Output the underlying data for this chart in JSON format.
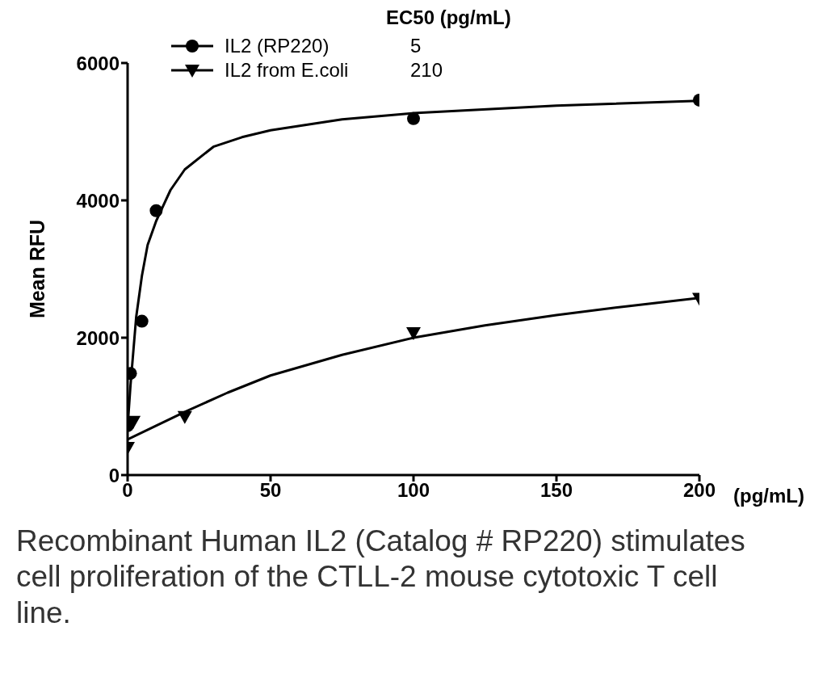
{
  "chart_data": {
    "type": "scatter",
    "ylabel": "Mean RFU",
    "xlabel": "(pg/mL)",
    "legend_title": "EC50 (pg/mL)",
    "legend": "top left",
    "xlim": [
      0,
      200
    ],
    "xticks": [
      0,
      50,
      100,
      150,
      200
    ],
    "ylim": [
      0,
      6000
    ],
    "yticks": [
      0,
      2000,
      4000,
      6000
    ],
    "series": [
      {
        "name": "IL2 (RP220)",
        "marker": "circle",
        "color": "#000000",
        "x": [
          0,
          1,
          5,
          10,
          100,
          200
        ],
        "values": [
          720,
          1480,
          2240,
          3850,
          5190,
          5460
        ]
      },
      {
        "name": "IL2 from E.coli",
        "marker": "triangle",
        "color": "#000000",
        "x": [
          0,
          2,
          20,
          100,
          200
        ],
        "values": [
          400,
          780,
          850,
          2070,
          2570
        ]
      },
      {
        "type": "line",
        "marker": "none",
        "color": "#000000",
        "x": [
          0,
          1,
          2,
          3,
          5,
          7,
          10,
          15,
          20,
          30,
          40,
          50,
          75,
          100,
          150,
          200
        ],
        "values": [
          700,
          1300,
          1800,
          2300,
          2900,
          3350,
          3700,
          4150,
          4450,
          4780,
          4920,
          5020,
          5180,
          5270,
          5380,
          5450
        ]
      },
      {
        "type": "line",
        "marker": "none",
        "color": "#000000",
        "x": [
          0,
          10,
          20,
          35,
          50,
          75,
          100,
          125,
          150,
          175,
          200
        ],
        "values": [
          520,
          720,
          920,
          1200,
          1450,
          1750,
          2000,
          2180,
          2330,
          2460,
          2580
        ]
      }
    ],
    "annotations": [
      "5",
      "210",
      "Recombinant Human IL2 (Catalog # RP220) stimulates cell proliferation of the CTLL-2 mouse cytotoxic T cell line."
    ]
  }
}
